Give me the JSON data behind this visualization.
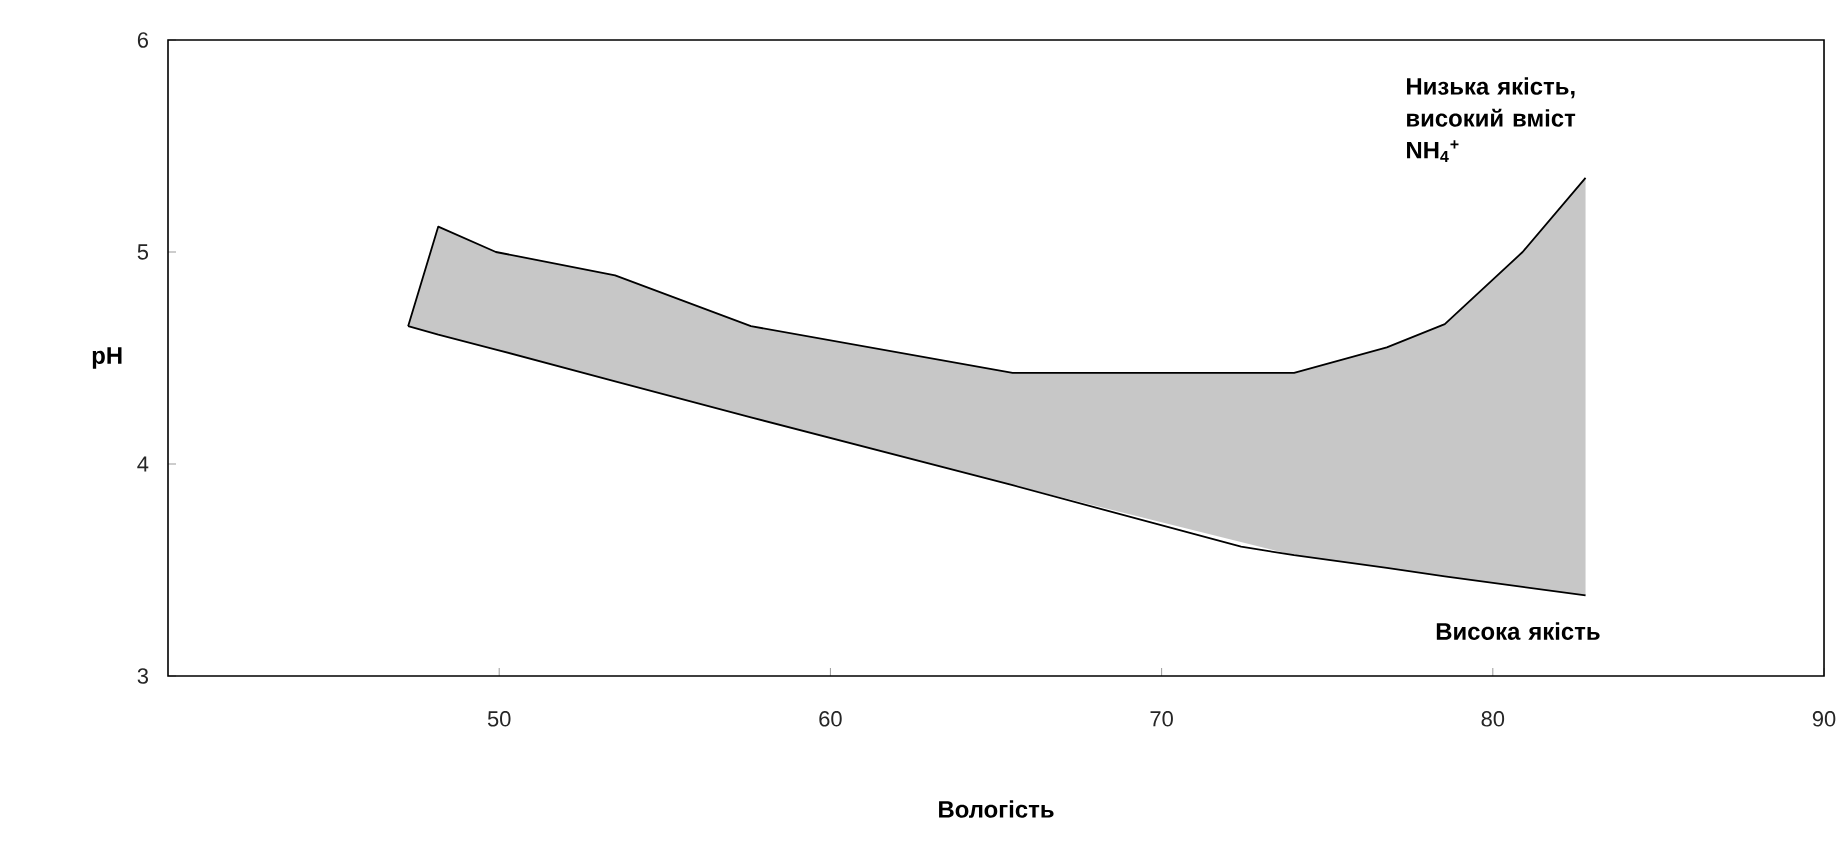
{
  "chart_data": {
    "type": "line",
    "xlabel": "Вологість",
    "ylabel": "pH",
    "xlim": [
      40,
      90
    ],
    "xticks": [
      50,
      60,
      70,
      80,
      90
    ],
    "ylim": [
      3,
      6
    ],
    "yticks": [
      3,
      4,
      5,
      6
    ],
    "grid": false,
    "series": [
      {
        "color": "#000000",
        "x": [
          47.25,
          48.16,
          49.9,
          53.5,
          57.6,
          65.5,
          74.0,
          76.8,
          78.55,
          80.9,
          82.8
        ],
        "lower": [
          4.65,
          4.61,
          4.54,
          4.39,
          4.22,
          3.9,
          3.57,
          3.51,
          3.47,
          3.42,
          3.38
        ],
        "upper": [
          4.65,
          5.12,
          5.0,
          4.89,
          4.65,
          4.43,
          4.43,
          4.55,
          4.66,
          5.0,
          5.35
        ],
        "values": [
          4.65,
          5.12,
          5.0,
          4.89,
          4.65,
          4.43,
          4.43,
          4.55,
          4.66,
          5.0,
          5.35
        ]
      },
      {
        "color": "#000000",
        "x": [
          47.25,
          48.16,
          49.9,
          53.5,
          57.6,
          65.5,
          72.4,
          74.0,
          76.8,
          78.55,
          80.9,
          82.8
        ],
        "values": [
          4.65,
          4.61,
          4.54,
          4.39,
          4.22,
          3.9,
          3.61,
          3.57,
          3.51,
          3.47,
          3.42,
          3.38
        ]
      }
    ],
    "annotations": [
      "Низька якість, високий вміст NH$_{4}$$^{+}$",
      "Висока якість"
    ]
  }
}
